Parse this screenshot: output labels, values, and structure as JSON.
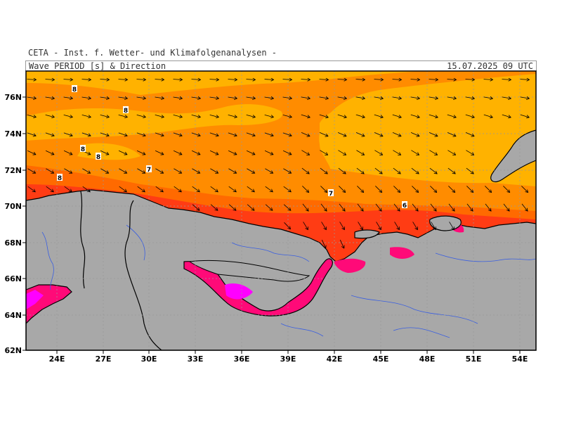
{
  "header": {
    "institute": "CETA - Inst. f. Wetter- und Klimafolgenanalysen -",
    "title": "Wave PERIOD [s] & Direction",
    "timestamp": "15.07.2025 09 UTC"
  },
  "axes": {
    "lat_labels": [
      "76N",
      "74N",
      "72N",
      "70N",
      "68N",
      "66N",
      "64N",
      "62N"
    ],
    "lon_labels": [
      "24E",
      "27E",
      "30E",
      "33E",
      "36E",
      "39E",
      "42E",
      "45E",
      "48E",
      "51E",
      "54E"
    ]
  },
  "contour_labels": [
    "8",
    "8",
    "8",
    "8",
    "8",
    "7",
    "7",
    "6"
  ],
  "colors": {
    "land": "#a8a8a8",
    "period_8": "#ffb200",
    "period_7": "#ff8c00",
    "period_6": "#ff6a00",
    "period_5": "#ff3c14",
    "period_low": "#ff0a78",
    "period_min": "#ff00ff",
    "coast": "#000000",
    "rivers": "#3a5fe0"
  },
  "vectors": {
    "direction": "east-southeast"
  }
}
